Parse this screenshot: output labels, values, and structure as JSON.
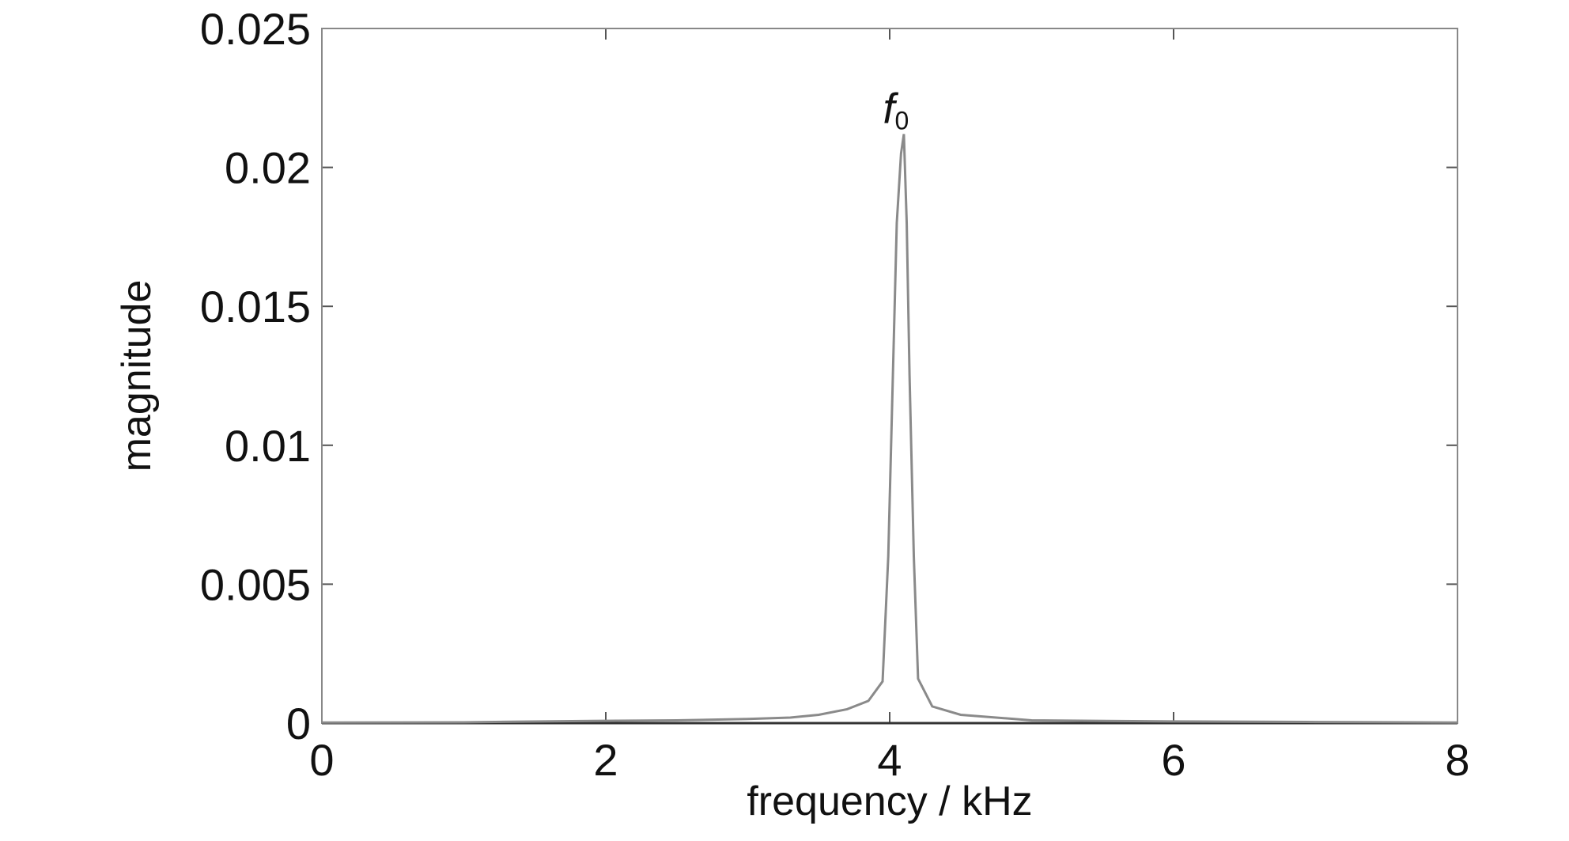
{
  "chart_data": {
    "type": "line",
    "x_label": "frequency / kHz",
    "y_label": "magnitude",
    "annotation": {
      "text": "f",
      "subscript": "0"
    },
    "x": [
      0,
      1,
      1.9,
      2.5,
      3,
      3.3,
      3.5,
      3.7,
      3.85,
      3.95,
      3.99,
      4.02,
      4.05,
      4.08,
      4.1,
      4.12,
      4.14,
      4.17,
      4.2,
      4.3,
      4.5,
      5,
      6,
      7,
      8
    ],
    "series": [
      {
        "name": "magnitude",
        "color": "#8a8a8a",
        "values": [
          2e-05,
          3e-05,
          8e-05,
          0.0001,
          0.00015,
          0.0002,
          0.0003,
          0.0005,
          0.0008,
          0.0015,
          0.006,
          0.012,
          0.018,
          0.0205,
          0.0212,
          0.018,
          0.0125,
          0.006,
          0.0016,
          0.0006,
          0.0003,
          0.0001,
          6e-05,
          4e-05,
          2e-05
        ]
      }
    ],
    "xlim": [
      0,
      8
    ],
    "xticks": [
      0,
      2,
      4,
      6,
      8
    ],
    "ylim": [
      0,
      0.025
    ],
    "yticks": [
      0,
      0.005,
      0.01,
      0.015,
      0.02,
      0.025
    ],
    "grid": false
  }
}
